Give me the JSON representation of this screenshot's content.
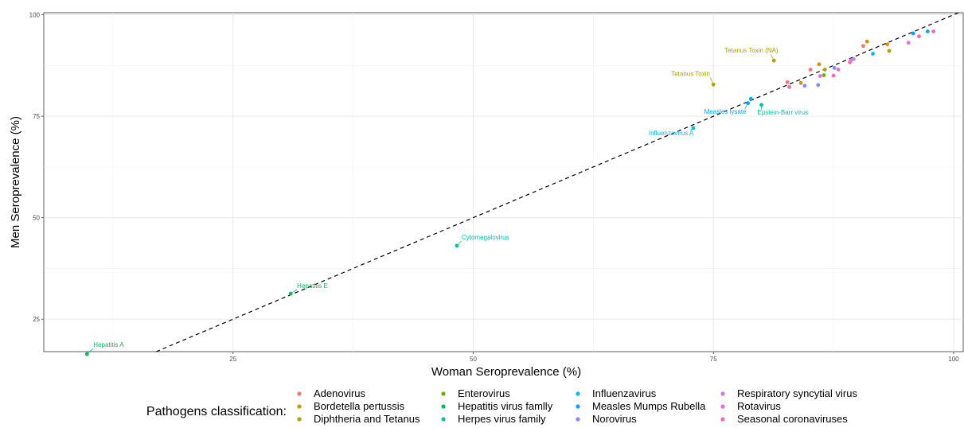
{
  "chart_data": {
    "type": "scatter",
    "title": "",
    "xlabel": "Woman Seroprevalence (%)",
    "ylabel": "Men Seroprevalence (%)",
    "xlim": [
      5.3,
      101
    ],
    "ylim": [
      17,
      100.5
    ],
    "x_ticks": [
      25,
      50,
      75,
      100
    ],
    "y_ticks": [
      25,
      50,
      75,
      100
    ],
    "x_tick_labels": [
      "25",
      "50",
      "75",
      "100"
    ],
    "y_tick_labels": [
      "25",
      "50",
      "75",
      "100"
    ],
    "grid": true,
    "reference_line": {
      "type": "identity",
      "style": "dashed"
    },
    "legend": {
      "title": "Pathogens classification:",
      "position": "bottom"
    },
    "series": [
      {
        "name": "Adenovirus",
        "color": "#F8766D",
        "points": [
          [
            82.7,
            83.4
          ],
          [
            85.1,
            86.5
          ],
          [
            90.6,
            92.3
          ]
        ]
      },
      {
        "name": "Bordetella pertussis",
        "color": "#DB8E00",
        "points": [
          [
            84.1,
            83.2
          ],
          [
            86.0,
            87.8
          ],
          [
            91.0,
            93.4
          ],
          [
            93.1,
            92.7
          ]
        ]
      },
      {
        "name": "Diphtheria and Tetanus",
        "color": "#AEA200",
        "points": [
          [
            75.0,
            82.8
          ],
          [
            81.3,
            88.7
          ],
          [
            86.6,
            86.5
          ],
          [
            93.3,
            91.1
          ]
        ],
        "labels": [
          "Tetanus Toxin",
          "Tetanus Toxin (NA)"
        ]
      },
      {
        "name": "Enterovirus",
        "color": "#64B200",
        "points": [
          [
            86.5,
            85.1
          ]
        ]
      },
      {
        "name": "Hepatitis virus famlly",
        "color": "#00BD5C",
        "points": [
          [
            9.8,
            16.4
          ],
          [
            31.0,
            31.3
          ]
        ],
        "labels": [
          "Hepatitis A",
          "Hepatitis E"
        ]
      },
      {
        "name": "Herpes virus family",
        "color": "#00C1A7",
        "points": [
          [
            48.3,
            43.1
          ],
          [
            80.0,
            77.8
          ]
        ],
        "labels": [
          "Cytomegalovirus",
          "Epstein-Barr virus"
        ]
      },
      {
        "name": "Influenzavirus",
        "color": "#00BADE",
        "points": [
          [
            72.9,
            72.1
          ],
          [
            91.6,
            90.4
          ]
        ],
        "labels": [
          "Influenzavirus A"
        ]
      },
      {
        "name": "Measles Mumps Rubella",
        "color": "#00A6FF",
        "points": [
          [
            78.6,
            78.2
          ],
          [
            78.9,
            79.3
          ],
          [
            95.8,
            95.4
          ],
          [
            97.3,
            95.9
          ]
        ],
        "labels": [
          "Measles lysate"
        ]
      },
      {
        "name": "Norovirus",
        "color": "#7E8CFF",
        "points": [
          [
            84.5,
            82.5
          ],
          [
            85.9,
            82.7
          ],
          [
            87.6,
            86.9
          ]
        ]
      },
      {
        "name": "Respiratory syncytial virus",
        "color": "#C77CFF",
        "points": [
          [
            89.3,
            88.8
          ],
          [
            89.6,
            89.1
          ]
        ]
      },
      {
        "name": "Rotavirus",
        "color": "#EF67EB",
        "points": [
          [
            86.1,
            84.9
          ],
          [
            88.0,
            86.5
          ],
          [
            95.3,
            93.1
          ]
        ]
      },
      {
        "name": "Seasonal coronaviruses",
        "color": "#FF63B6",
        "points": [
          [
            82.9,
            82.2
          ],
          [
            87.5,
            85.0
          ],
          [
            89.2,
            88.3
          ],
          [
            96.4,
            94.7
          ],
          [
            97.9,
            95.9
          ]
        ]
      }
    ]
  }
}
